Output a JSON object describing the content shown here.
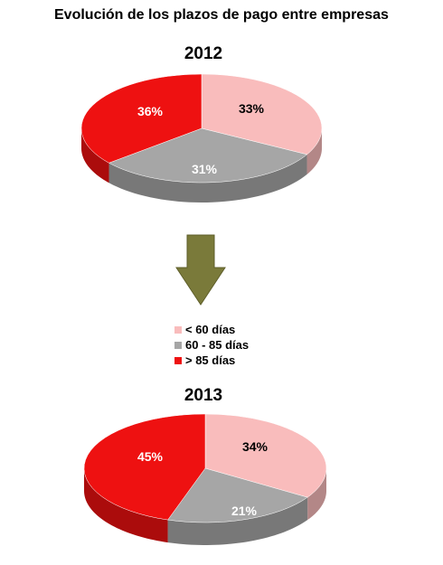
{
  "title": "Evolución de los plazos de pago entre empresas",
  "legend": [
    {
      "label": "< 60 días",
      "color": "#f9bcbc"
    },
    {
      "label": "60 - 85 días",
      "color": "#a6a6a6"
    },
    {
      "label": "> 85 días",
      "color": "#ee1111"
    }
  ],
  "arrow": {
    "icon": "down-arrow-icon",
    "color": "#7a7a3a"
  },
  "chart_data": [
    {
      "type": "pie",
      "title": "2012",
      "categories": [
        "< 60 días",
        "60 - 85 días",
        "> 85 días"
      ],
      "values": [
        33,
        31,
        36
      ],
      "labels": [
        "33%",
        "31%",
        "36%"
      ],
      "colors": [
        "#f9bcbc",
        "#a6a6a6",
        "#ee1111"
      ]
    },
    {
      "type": "pie",
      "title": "2013",
      "categories": [
        "< 60 días",
        "60 - 85 días",
        "> 85 días"
      ],
      "values": [
        34,
        21,
        45
      ],
      "labels": [
        "34%",
        "21%",
        "45%"
      ],
      "colors": [
        "#f9bcbc",
        "#a6a6a6",
        "#ee1111"
      ]
    }
  ]
}
